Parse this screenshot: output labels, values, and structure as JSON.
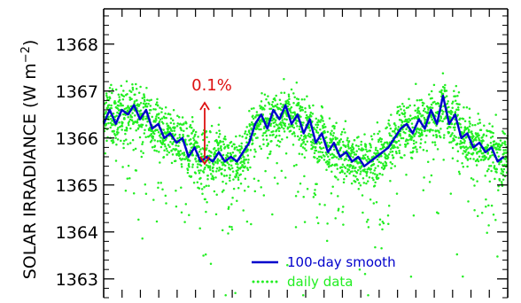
{
  "chart_data": {
    "type": "scatter",
    "title": "",
    "xlabel": "",
    "ylabel": "SOLAR IRRADIANCE (W m",
    "ylabel_superscript": "−2",
    "ylabel_close": ")",
    "ylim": [
      1362.6,
      1368.75
    ],
    "xlim": [
      0,
      100
    ],
    "y_ticks": [
      1363,
      1364,
      1365,
      1366,
      1367,
      1368
    ],
    "y_tick_labels": [
      "1363",
      "1364",
      "1365",
      "1366",
      "1367",
      "1368"
    ],
    "y_minor_step": 0.2,
    "x_ticks": [
      0,
      4.55,
      9.09,
      13.64,
      18.18,
      22.73,
      27.27,
      31.82,
      36.36,
      40.91,
      45.45,
      50,
      54.55,
      59.09,
      63.64,
      68.18,
      72.73,
      77.27,
      81.82,
      86.36,
      90.91,
      95.45,
      100
    ],
    "grid": false,
    "legend_position": "bottom-center",
    "series": [
      {
        "name": "100-day smooth",
        "color": "#0000cc",
        "style": "line",
        "x": [
          0,
          1.5,
          3,
          4.5,
          6,
          7.5,
          9,
          10.5,
          12,
          13.5,
          15,
          16.5,
          18,
          19.5,
          21,
          22.5,
          24,
          25.5,
          27,
          28.5,
          30,
          31.5,
          33,
          34.5,
          36,
          37.5,
          39,
          40.5,
          42,
          43.5,
          45,
          46.5,
          48,
          49.5,
          51,
          52.5,
          54,
          55.5,
          57,
          58.5,
          60,
          61.5,
          63,
          64.5,
          66,
          67.5,
          69,
          70.5,
          72,
          73.5,
          75,
          76.5,
          78,
          79.5,
          81,
          82.5,
          84,
          85.5,
          87,
          88.5,
          90,
          91.5,
          93,
          94.5,
          96,
          97.5,
          99
        ],
        "values": [
          1366.3,
          1366.6,
          1366.3,
          1366.6,
          1366.5,
          1366.7,
          1366.4,
          1366.6,
          1366.2,
          1366.3,
          1366.0,
          1366.1,
          1365.9,
          1366.0,
          1365.6,
          1365.8,
          1365.5,
          1365.6,
          1365.5,
          1365.7,
          1365.5,
          1365.6,
          1365.5,
          1365.7,
          1365.9,
          1366.3,
          1366.5,
          1366.2,
          1366.6,
          1366.4,
          1366.7,
          1366.3,
          1366.5,
          1366.1,
          1366.4,
          1365.9,
          1366.1,
          1365.7,
          1365.9,
          1365.6,
          1365.7,
          1365.5,
          1365.6,
          1365.4,
          1365.5,
          1365.6,
          1365.7,
          1365.8,
          1366.0,
          1366.2,
          1366.3,
          1366.1,
          1366.4,
          1366.2,
          1366.6,
          1366.3,
          1366.9,
          1366.3,
          1366.5,
          1366.0,
          1366.1,
          1365.8,
          1365.9,
          1365.7,
          1365.8,
          1365.5,
          1365.6
        ]
      },
      {
        "name": "daily data",
        "color": "#22ee22",
        "style": "dots",
        "note_source": "points derived from smooth series with scatter"
      }
    ],
    "annotations": [
      {
        "text": "0.1%",
        "color": "#dd1111",
        "x": 25,
        "y_from": 1365.45,
        "y_to": 1366.75
      }
    ]
  }
}
